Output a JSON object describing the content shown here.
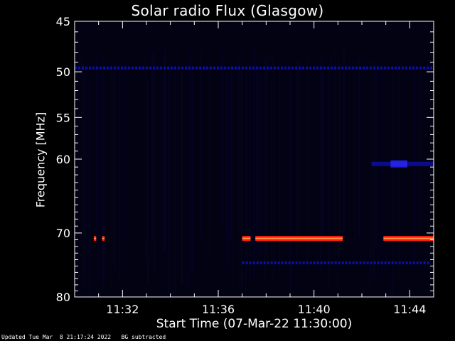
{
  "chart_data": {
    "type": "heatmap",
    "title": "Solar radio Flux (Glasgow)",
    "xlabel": "Start Time (07-Mar-22 11:30:00)",
    "ylabel": "Frequency [MHz]",
    "x_unit": "minutes after 11:30:00",
    "xlim": [
      0,
      15
    ],
    "ylim": [
      45,
      80
    ],
    "y_scale": "log",
    "x_ticks": [
      {
        "value": 2,
        "label": "11:32"
      },
      {
        "value": 6,
        "label": "11:36"
      },
      {
        "value": 10,
        "label": "11:40"
      },
      {
        "value": 14,
        "label": "11:44"
      }
    ],
    "y_ticks": [
      {
        "value": 45,
        "label": "45"
      },
      {
        "value": 50,
        "label": "50"
      },
      {
        "value": 55,
        "label": "55"
      },
      {
        "value": 60,
        "label": "60"
      },
      {
        "value": 70,
        "label": "70"
      },
      {
        "value": 80,
        "label": "80"
      }
    ],
    "colors": {
      "background": "#000000",
      "faint": "#05052a",
      "weak": "#1010c0",
      "band": "#2828ff",
      "hot": "#ff1a10",
      "core": "#ffd060"
    },
    "features": [
      {
        "kind": "weak-line",
        "freq_mhz": 49.6,
        "x_from": 0,
        "x_to": 15
      },
      {
        "kind": "weak-line",
        "freq_mhz": 74.5,
        "x_from": 7,
        "x_to": 14.8
      },
      {
        "kind": "weak-band",
        "freq_mhz": 60.6,
        "x_from": 12.4,
        "x_to": 15
      },
      {
        "kind": "hot-line",
        "freq_mhz": 70.8,
        "x_from": 0.8,
        "x_to": 0.9
      },
      {
        "kind": "hot-line",
        "freq_mhz": 70.8,
        "x_from": 1.15,
        "x_to": 1.25
      },
      {
        "kind": "hot-line",
        "freq_mhz": 70.8,
        "x_from": 7.0,
        "x_to": 7.35
      },
      {
        "kind": "hot-line",
        "freq_mhz": 70.8,
        "x_from": 7.55,
        "x_to": 11.2
      },
      {
        "kind": "hot-line",
        "freq_mhz": 70.8,
        "x_from": 12.9,
        "x_to": 15
      }
    ]
  },
  "footer": {
    "updated": "Updated Tue Mar  8 21:17:24 2022",
    "note": "BG subtracted"
  }
}
